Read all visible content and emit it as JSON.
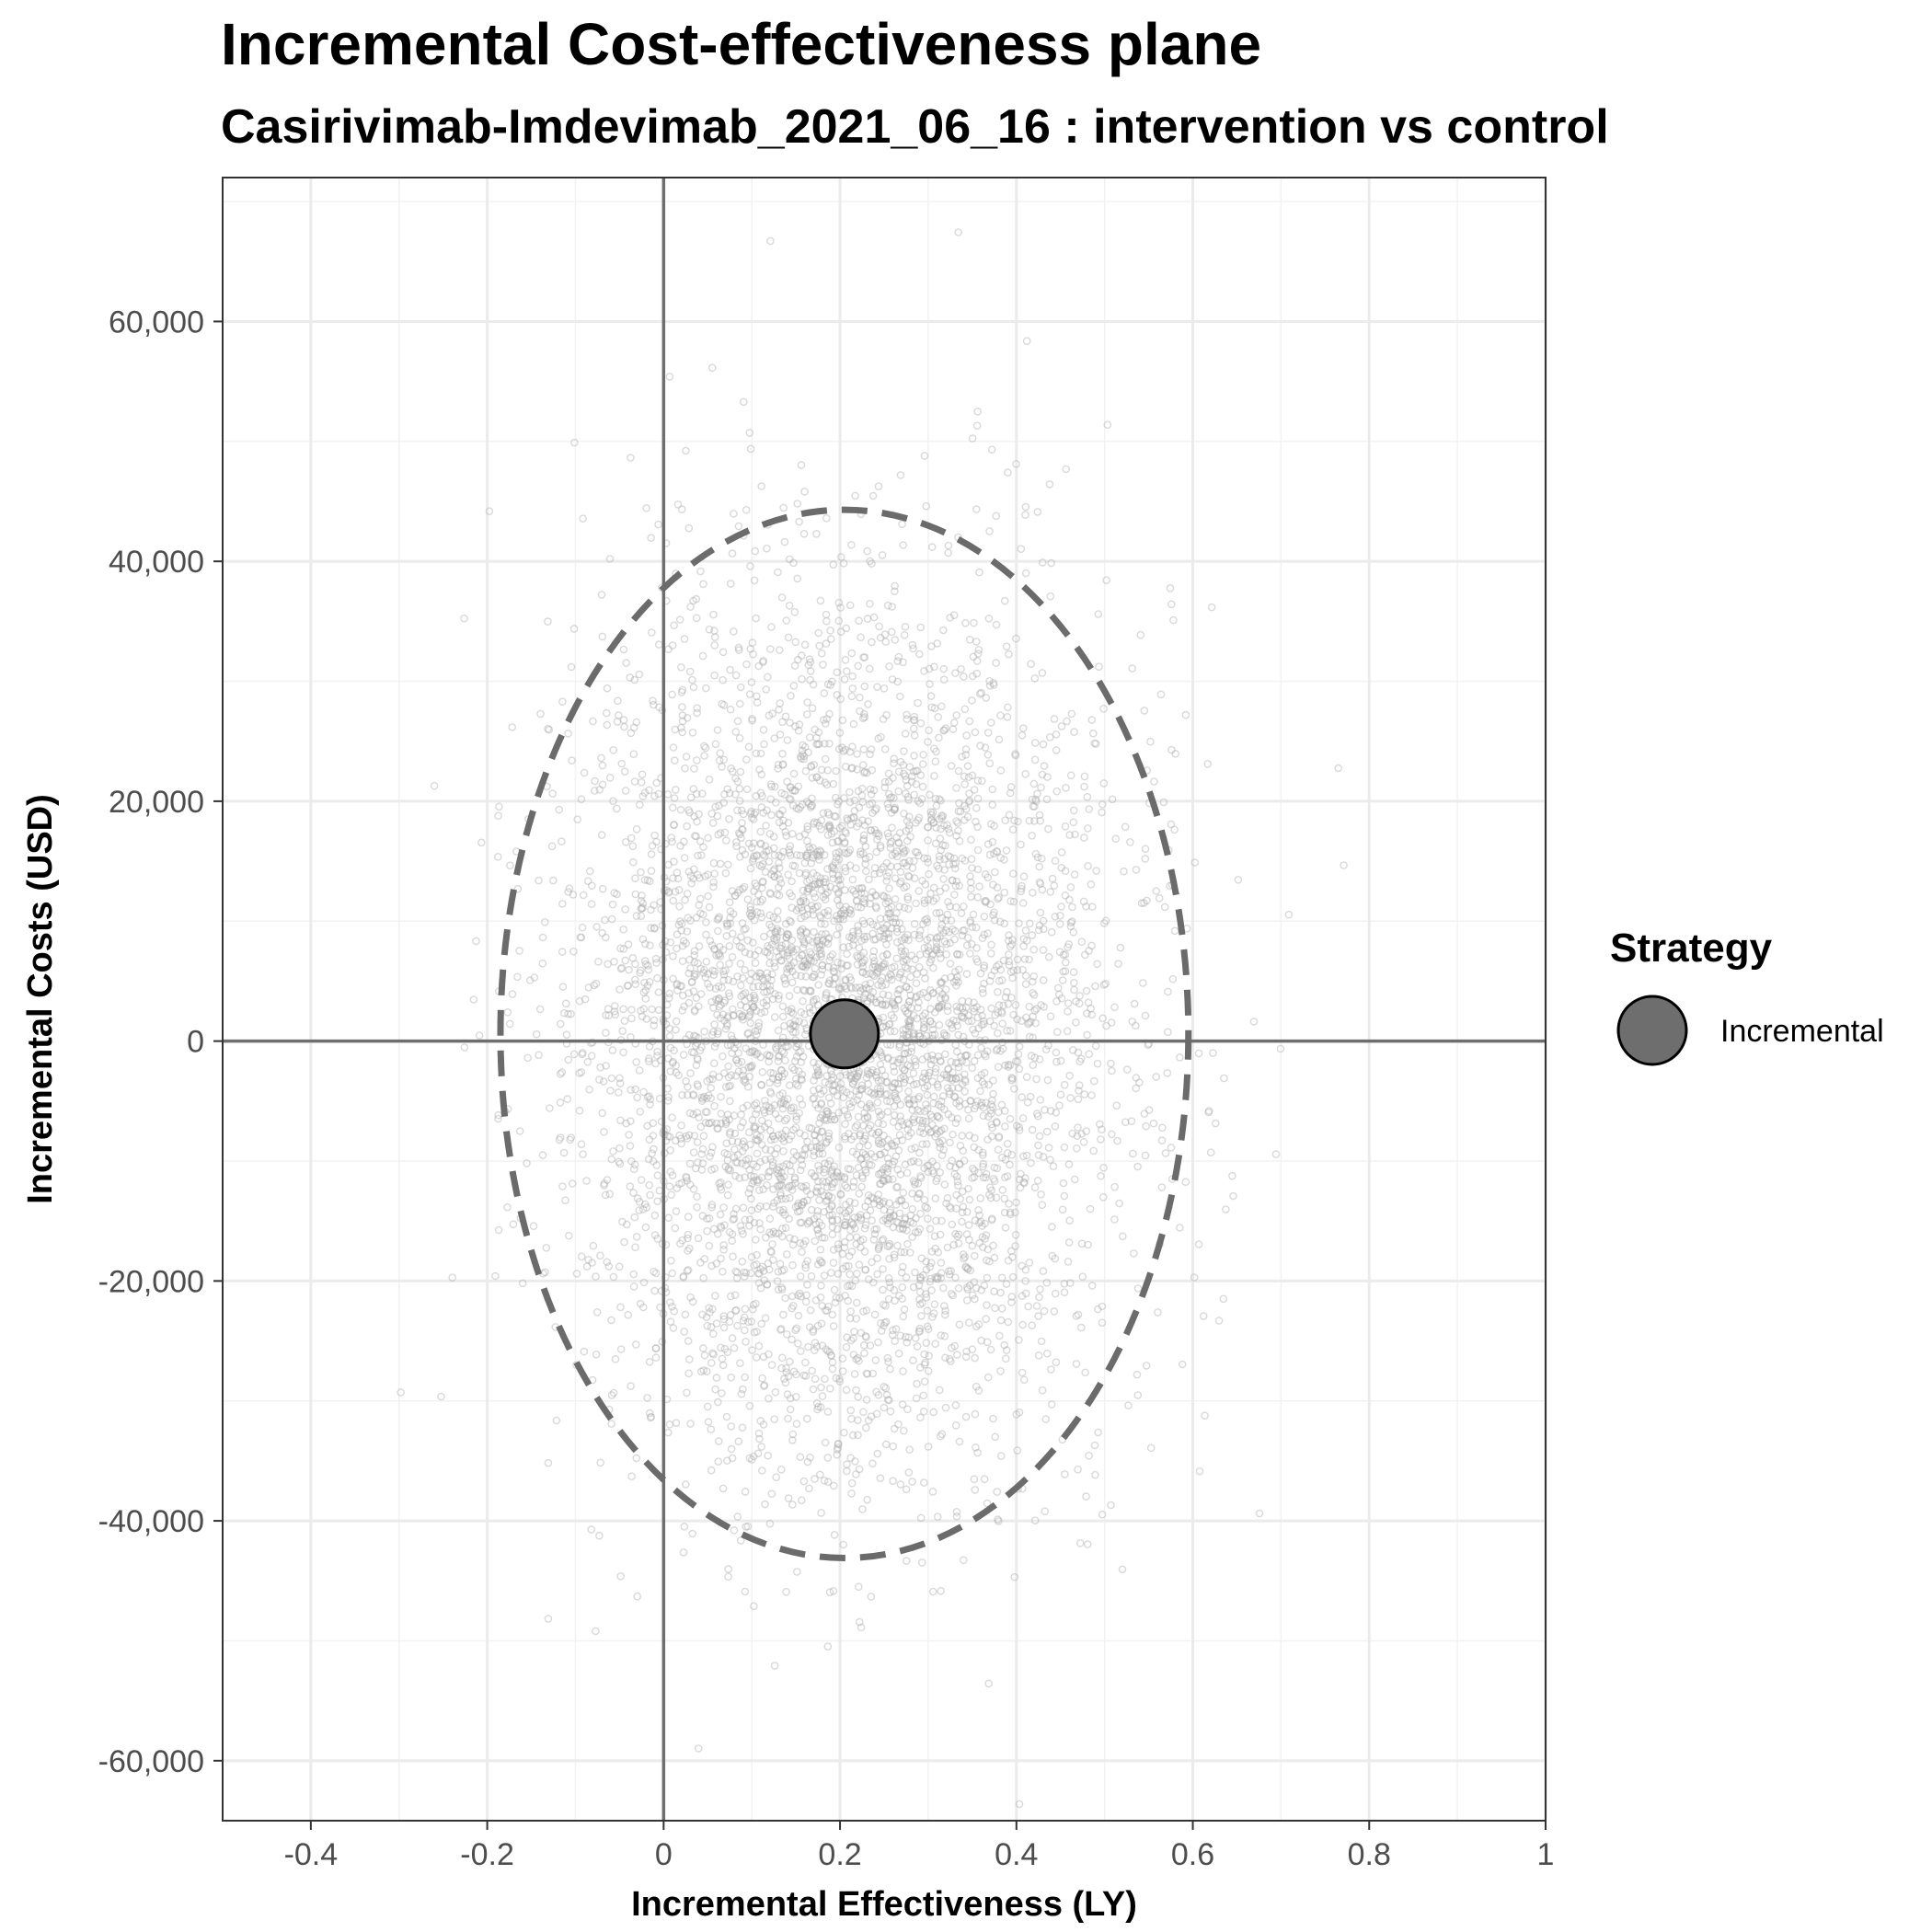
{
  "chart_data": {
    "type": "scatter",
    "title": "Incremental Cost-effectiveness plane",
    "subtitle": "Casirivimab-Imdevimab_2021_06_16 : intervention vs control",
    "xlabel": "Incremental Effectiveness (LY)",
    "ylabel": "Incremental Costs (USD)",
    "xlim": [
      -0.5,
      1.0
    ],
    "ylim": [
      -65000,
      72000
    ],
    "x_ticks": [
      {
        "value": -0.4,
        "label": "-0.4"
      },
      {
        "value": -0.2,
        "label": "-0.2"
      },
      {
        "value": 0,
        "label": "0"
      },
      {
        "value": 0.2,
        "label": "0.2"
      },
      {
        "value": 0.4,
        "label": "0.4"
      },
      {
        "value": 0.6,
        "label": "0.6"
      },
      {
        "value": 0.8,
        "label": "0.8"
      },
      {
        "value": 1.0,
        "label": "1"
      }
    ],
    "y_ticks": [
      {
        "value": 60000,
        "label": "60,000"
      },
      {
        "value": 40000,
        "label": "40,000"
      },
      {
        "value": 20000,
        "label": "20,000"
      },
      {
        "value": 0,
        "label": "0"
      },
      {
        "value": -20000,
        "label": "-20,000"
      },
      {
        "value": -40000,
        "label": "-40,000"
      },
      {
        "value": -60000,
        "label": "-60,000"
      }
    ],
    "grid": true,
    "reference_lines": {
      "x": 0,
      "y": 0
    },
    "simulations": {
      "description_visible": false,
      "count": 5000,
      "mean_x": 0.205,
      "sd_x": 0.148,
      "mean_y": 500,
      "sd_y": 17500,
      "color": "#aaaaaa"
    },
    "mean_point": {
      "x": 0.205,
      "y": 600,
      "series": "Incremental"
    },
    "confidence_ellipse": {
      "center_x": 0.205,
      "center_y": 600,
      "half_width_x": 0.39,
      "half_height_y": 43700,
      "style": "dashed",
      "color": "#6b6b6b"
    },
    "legend": {
      "title": "Strategy",
      "position": "right",
      "entries": [
        {
          "label": "Incremental",
          "color": "#6e6e6e"
        }
      ]
    }
  }
}
